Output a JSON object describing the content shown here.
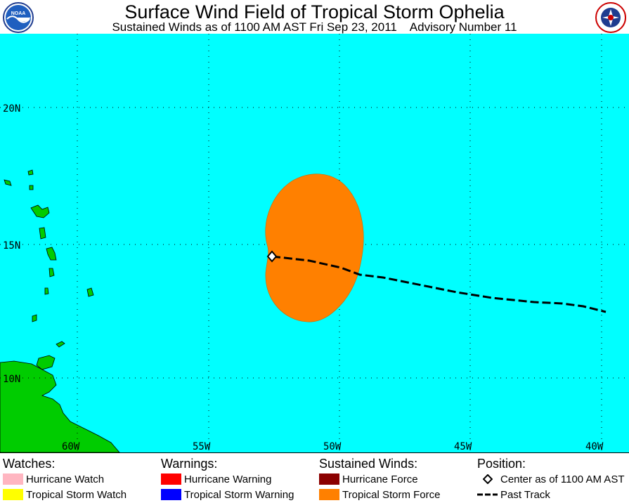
{
  "header": {
    "title": "Surface Wind Field of Tropical Storm Ophelia",
    "subtitle": "Sustained Winds as of 1100 AM AST Fri Sep 23, 2011    Advisory Number 11",
    "left_logo_icon": "noaa-logo-icon",
    "right_logo_icon": "national-weather-service-logo-icon"
  },
  "map": {
    "ocean_color": "#00ffff",
    "land_color": "#00cc00",
    "wind_field_color": "#ff8000",
    "lat_labels": [
      "20N",
      "15N",
      "10N"
    ],
    "lon_labels": [
      "60W",
      "55W",
      "50W",
      "45W",
      "40W"
    ]
  },
  "legend": {
    "watches": {
      "heading": "Watches:",
      "items": [
        {
          "label": "Hurricane Watch",
          "color": "#ffb6c1"
        },
        {
          "label": "Tropical Storm Watch",
          "color": "#ffff00"
        }
      ]
    },
    "warnings": {
      "heading": "Warnings:",
      "items": [
        {
          "label": "Hurricane Warning",
          "color": "#ff0000"
        },
        {
          "label": "Tropical Storm Warning",
          "color": "#0000ff"
        }
      ]
    },
    "winds": {
      "heading": "Sustained Winds:",
      "items": [
        {
          "label": "Hurricane Force",
          "color": "#8b0000"
        },
        {
          "label": "Tropical Storm Force",
          "color": "#ff8000"
        }
      ]
    },
    "position": {
      "heading": "Position:",
      "items": [
        {
          "label": "Center as of 1100 AM AST",
          "icon": "diamond-icon"
        },
        {
          "label": "Past Track",
          "icon": "dashed-line-icon"
        }
      ]
    }
  }
}
